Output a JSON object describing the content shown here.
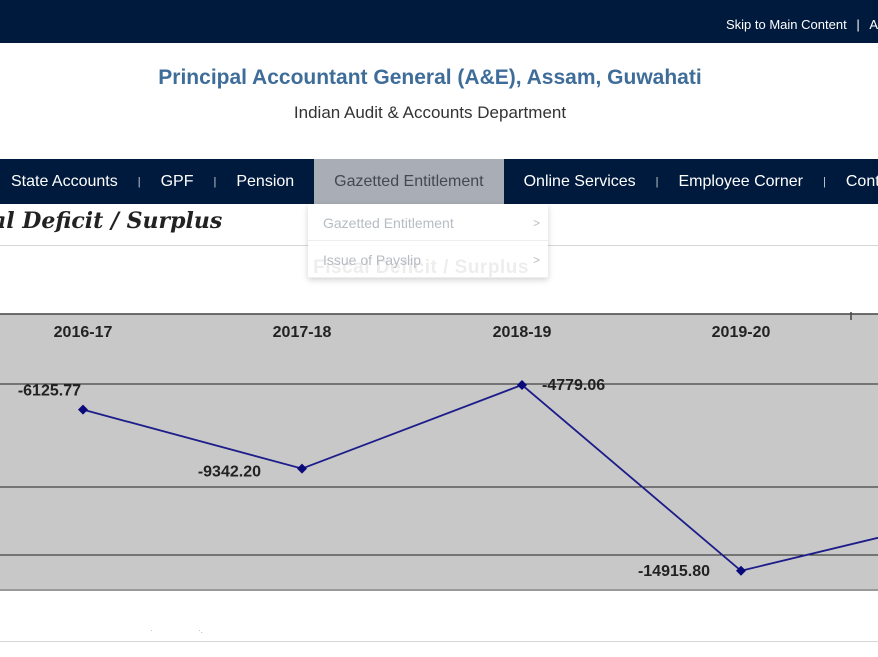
{
  "topbar": {
    "skip_link": "Skip to Main Content",
    "separator": "|",
    "next_link_fragment": "A"
  },
  "header": {
    "title": "Principal Accountant General (A&E), Assam, Guwahati",
    "subtitle": "Indian Audit & Accounts Department"
  },
  "nav": {
    "items": [
      {
        "label": "State Accounts"
      },
      {
        "label": "GPF"
      },
      {
        "label": "Pension"
      },
      {
        "label": "Gazetted Entitlement",
        "active": true
      },
      {
        "label": "Online Services"
      },
      {
        "label": "Employee Corner"
      },
      {
        "label": "Conta"
      }
    ],
    "separator": "|"
  },
  "dropdown": {
    "items": [
      {
        "label": "Gazetted Entitlement",
        "chevron": ">"
      },
      {
        "label": "Issue of Payslip",
        "chevron": ">"
      }
    ]
  },
  "page": {
    "heading": "al Deficit / Surplus"
  },
  "colors": {
    "navy": "#001a3d",
    "title_blue": "#3f6d9a",
    "chart_bg": "#c8c8c8",
    "series_line": "#1c1c8a"
  },
  "chart_data": {
    "type": "line",
    "title": "Fiscal Deficit / Surplus",
    "categories": [
      "2016-17",
      "2017-18",
      "2018-19",
      "2019-20"
    ],
    "series": [
      {
        "values": [
          -6125.77,
          -9342.2,
          -4779.06,
          -14915.8
        ]
      }
    ],
    "data_labels": [
      "-6125.77",
      "-9342.20",
      "-4779.06",
      "-14915.80"
    ],
    "category_axis_position": "top",
    "grid": true,
    "legend": "none"
  }
}
